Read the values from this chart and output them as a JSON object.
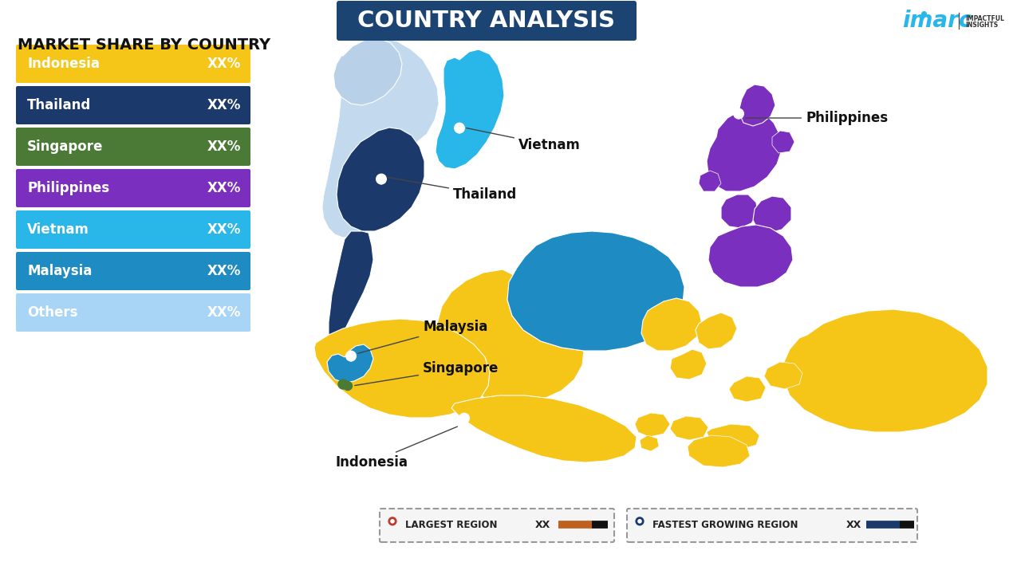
{
  "title": "COUNTRY ANALYSIS",
  "subtitle": "MARKET SHARE BY COUNTRY",
  "background_color": "#FFFFFF",
  "title_bg_color": "#1B4472",
  "title_text_color": "#FFFFFF",
  "legend_items": [
    {
      "label": "Indonesia",
      "value": "XX%",
      "color": "#F5C518"
    },
    {
      "label": "Thailand",
      "value": "XX%",
      "color": "#1B3A6B"
    },
    {
      "label": "Singapore",
      "value": "XX%",
      "color": "#4A7A35"
    },
    {
      "label": "Philippines",
      "value": "XX%",
      "color": "#7B2FBE"
    },
    {
      "label": "Vietnam",
      "value": "XX%",
      "color": "#29B6E8"
    },
    {
      "label": "Malaysia",
      "value": "XX%",
      "color": "#1E8BC3"
    },
    {
      "label": "Others",
      "value": "XX%",
      "color": "#A8D4F5"
    }
  ],
  "colors": {
    "Indonesia": "#F5C518",
    "Thailand": "#1B3A6B",
    "Vietnam": "#29B6E8",
    "Philippines": "#7B2FBE",
    "Malaysia": "#1E8BC3",
    "Singapore": "#4A7A35",
    "Myanmar": "#B8D0E8",
    "Others_bg": "#C2D9EE"
  },
  "imarc_color": "#29B6E8",
  "bottom_legend": [
    {
      "label": "LARGEST REGION",
      "value": "XX",
      "bar_color": "#C0392B"
    },
    {
      "label": "FASTEST GROWING REGION",
      "value": "XX",
      "bar_color": "#1B3A6B"
    }
  ]
}
